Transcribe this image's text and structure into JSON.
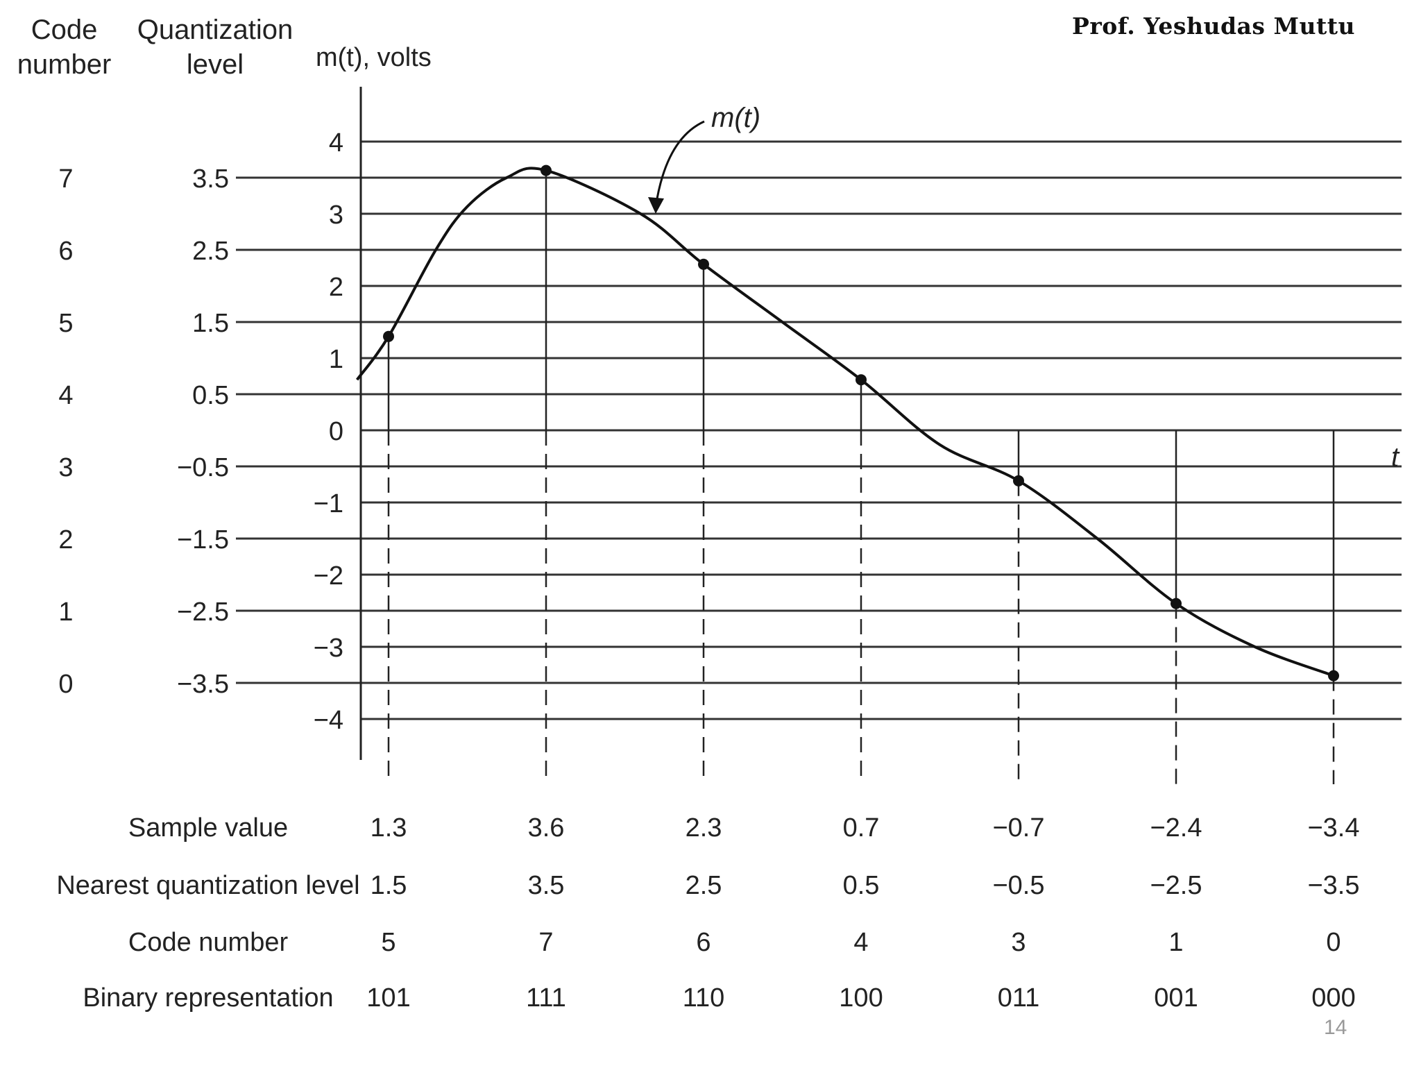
{
  "author": "Prof. Yeshudas Muttu",
  "page_number": "14",
  "headers": {
    "code_number": [
      "Code",
      "number"
    ],
    "quant_level": [
      "Quantization",
      "level"
    ]
  },
  "y_axis_label": "m(t), volts",
  "x_axis_label": "t",
  "curve_label": "m(t)",
  "chart_data": {
    "type": "line",
    "y_ticks": [
      "4",
      "3",
      "2",
      "1",
      "0",
      "−1",
      "−2",
      "−3",
      "−4"
    ],
    "y_tick_values": [
      4,
      3,
      2,
      1,
      0,
      -1,
      -2,
      -3,
      -4
    ],
    "quant_levels": [
      "3.5",
      "2.5",
      "1.5",
      "0.5",
      "−0.5",
      "−1.5",
      "−2.5",
      "−3.5"
    ],
    "quant_level_values": [
      3.5,
      2.5,
      1.5,
      0.5,
      -0.5,
      -1.5,
      -2.5,
      -3.5
    ],
    "code_numbers": [
      "7",
      "6",
      "5",
      "4",
      "3",
      "2",
      "1",
      "0"
    ],
    "ylim": [
      -4,
      4
    ],
    "grid": true,
    "samples": [
      {
        "t": 1,
        "value": 1.3
      },
      {
        "t": 2,
        "value": 3.6
      },
      {
        "t": 3,
        "value": 2.3
      },
      {
        "t": 4,
        "value": 0.7
      },
      {
        "t": 5,
        "value": -0.7
      },
      {
        "t": 6,
        "value": -2.4
      },
      {
        "t": 7,
        "value": -3.4
      }
    ],
    "curve": [
      {
        "t": 0.8,
        "value": 0.7
      },
      {
        "t": 1.0,
        "value": 1.3
      },
      {
        "t": 1.3,
        "value": 2.5
      },
      {
        "t": 1.5,
        "value": 3.1
      },
      {
        "t": 1.75,
        "value": 3.5
      },
      {
        "t": 2.0,
        "value": 3.6
      },
      {
        "t": 2.6,
        "value": 3.0
      },
      {
        "t": 3.0,
        "value": 2.3
      },
      {
        "t": 3.5,
        "value": 1.5
      },
      {
        "t": 4.0,
        "value": 0.7
      },
      {
        "t": 4.5,
        "value": -0.2
      },
      {
        "t": 5.0,
        "value": -0.7
      },
      {
        "t": 5.5,
        "value": -1.5
      },
      {
        "t": 6.0,
        "value": -2.4
      },
      {
        "t": 6.5,
        "value": -3.0
      },
      {
        "t": 7.0,
        "value": -3.4
      }
    ]
  },
  "table": {
    "row_labels": [
      "Sample value",
      "Nearest quantization level",
      "Code number",
      "Binary representation"
    ],
    "rows": [
      [
        "1.3",
        "3.6",
        "2.3",
        "0.7",
        "−0.7",
        "−2.4",
        "−3.4"
      ],
      [
        "1.5",
        "3.5",
        "2.5",
        "0.5",
        "−0.5",
        "−2.5",
        "−3.5"
      ],
      [
        "5",
        "7",
        "6",
        "4",
        "3",
        "1",
        "0"
      ],
      [
        "101",
        "111",
        "110",
        "100",
        "011",
        "001",
        "000"
      ]
    ]
  }
}
